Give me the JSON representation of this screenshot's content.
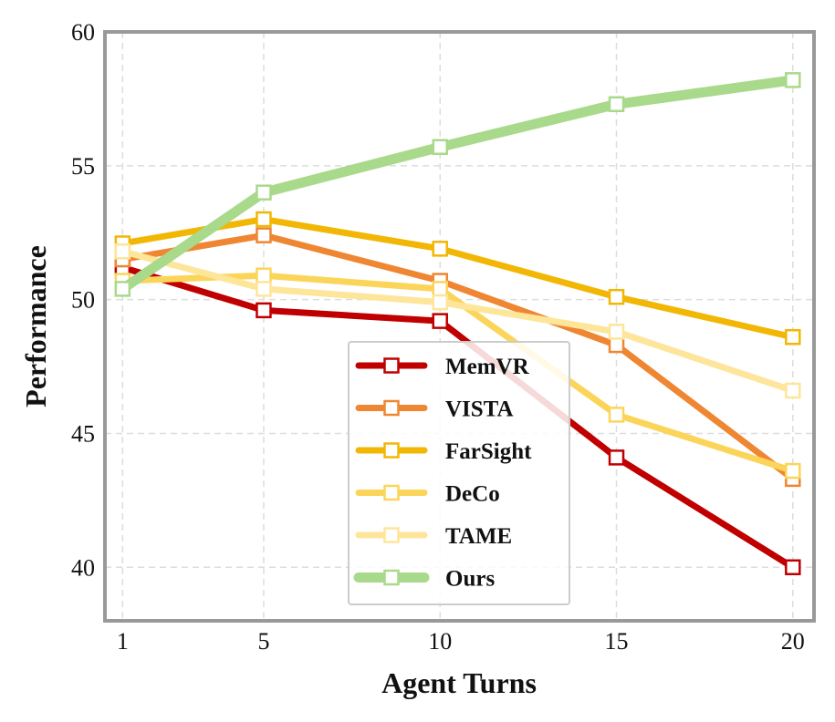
{
  "chart_data": {
    "type": "line",
    "title": "",
    "xlabel": "Agent Turns",
    "ylabel": "Performance",
    "x": [
      1,
      5,
      10,
      15,
      20
    ],
    "xticks": [
      "1",
      "5",
      "10",
      "15",
      "20"
    ],
    "yticks": [
      "40",
      "45",
      "50",
      "55",
      "60"
    ],
    "xlim": [
      0.5,
      20.6
    ],
    "ylim": [
      38,
      60
    ],
    "grid": true,
    "legend_position": "lower-center",
    "series": [
      {
        "name": "MemVR",
        "color": "#c00000",
        "values": [
          51.2,
          49.6,
          49.2,
          44.1,
          40.0
        ]
      },
      {
        "name": "VISTA",
        "color": "#ef8632",
        "values": [
          51.5,
          52.4,
          50.7,
          48.3,
          43.3
        ]
      },
      {
        "name": "FarSight",
        "color": "#f2b705",
        "values": [
          52.1,
          53.0,
          51.9,
          50.1,
          48.6
        ]
      },
      {
        "name": "DeCo",
        "color": "#fbd55a",
        "values": [
          50.7,
          50.9,
          50.4,
          45.7,
          43.6
        ]
      },
      {
        "name": "TAME",
        "color": "#fde59a",
        "values": [
          51.8,
          50.4,
          49.9,
          48.8,
          46.6
        ]
      },
      {
        "name": "Ours",
        "color": "#a9d98a",
        "values": [
          50.4,
          54.0,
          55.7,
          57.3,
          58.2
        ]
      }
    ]
  }
}
